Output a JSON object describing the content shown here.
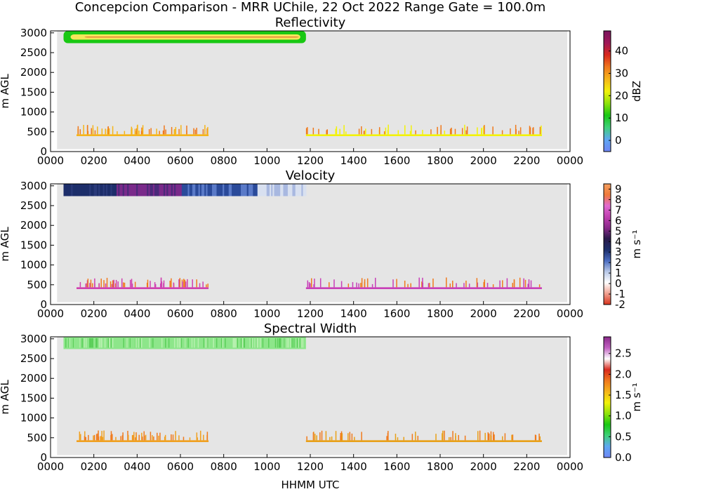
{
  "figure": {
    "title": "Concepcion Comparison - MRR UChile, 22 Oct 2022 Range Gate = 100.0m",
    "xlabel": "HHMM UTC"
  },
  "chart_data": [
    {
      "type": "heatmap",
      "title": "Reflectivity",
      "ylabel": "m AGL",
      "x_ticks": [
        "0000",
        "0200",
        "0400",
        "0600",
        "0800",
        "1000",
        "1200",
        "1400",
        "1600",
        "1800",
        "2000",
        "2200",
        "0000"
      ],
      "y_ticks": [
        "0",
        "500",
        "1000",
        "1500",
        "2000",
        "2500",
        "3000"
      ],
      "xlim_hours": [
        0,
        24
      ],
      "ylim_m": [
        0,
        3050
      ],
      "colorbar": {
        "label": "dBZ",
        "ticks": [
          "0",
          "10",
          "20",
          "30",
          "40"
        ],
        "range": [
          -5,
          49
        ],
        "colors": [
          "#6f86f5",
          "#5fa7f2",
          "#3fd07a",
          "#19c813",
          "#8fe30a",
          "#f2f20a",
          "#f5b51a",
          "#f0781d",
          "#d8281c",
          "#a01858",
          "#7a145e"
        ]
      },
      "layers": [
        {
          "desc": "cloud band",
          "t0": 0.6,
          "t1": 11.8,
          "y0": 2740,
          "y1": 3050,
          "core_color": "#e8823a",
          "edge_color": "#19c813"
        },
        {
          "desc": "low band a",
          "t0": 1.2,
          "t1": 7.3,
          "y0": 390,
          "y1": 490,
          "color": "#f5b51a"
        },
        {
          "desc": "low band b",
          "t0": 11.8,
          "t1": 22.7,
          "y0": 390,
          "y1": 490,
          "color": "#f2f20a"
        }
      ]
    },
    {
      "type": "heatmap",
      "title": "Velocity",
      "ylabel": "m AGL",
      "x_ticks": [
        "0000",
        "0200",
        "0400",
        "0600",
        "0800",
        "1000",
        "1200",
        "1400",
        "1600",
        "1800",
        "2000",
        "2200",
        "0000"
      ],
      "y_ticks": [
        "0",
        "500",
        "1000",
        "1500",
        "2000",
        "2500",
        "3000"
      ],
      "xlim_hours": [
        0,
        24
      ],
      "ylim_m": [
        0,
        3050
      ],
      "colorbar": {
        "label": "m s⁻¹",
        "ticks": [
          "-2",
          "-1",
          "0",
          "1",
          "2",
          "3",
          "4",
          "5",
          "6",
          "7",
          "8",
          "9"
        ],
        "range": [
          -2,
          9.5
        ],
        "colors": [
          "#d8321c",
          "#f0a090",
          "#ffffff",
          "#b8c8e8",
          "#4a6cc0",
          "#1d2e6a",
          "#2a1a4a",
          "#8a2a8a",
          "#c040b0",
          "#e06ad0",
          "#f07a3a",
          "#f5a060"
        ]
      },
      "layers": [
        {
          "desc": "cloud band",
          "t0": 0.6,
          "t1": 11.8,
          "y0": 2740,
          "y1": 3050,
          "color_a": "#1d2e6a",
          "color_b": "#7a2a8a",
          "color_c": "#d8e0f0"
        },
        {
          "desc": "low band a",
          "t0": 1.2,
          "t1": 7.3,
          "y0": 390,
          "y1": 490,
          "color": "#d040b0"
        },
        {
          "desc": "low band b",
          "t0": 11.8,
          "t1": 22.7,
          "y0": 390,
          "y1": 490,
          "color": "#c840b8"
        }
      ]
    },
    {
      "type": "heatmap",
      "title": "Spectral Width",
      "ylabel": "m AGL",
      "x_ticks": [
        "0000",
        "0200",
        "0400",
        "0600",
        "0800",
        "1000",
        "1200",
        "1400",
        "1600",
        "1800",
        "2000",
        "2200",
        "0000"
      ],
      "y_ticks": [
        "0",
        "500",
        "1000",
        "1500",
        "2000",
        "2500",
        "3000"
      ],
      "xlim_hours": [
        0,
        24
      ],
      "ylim_m": [
        0,
        3050
      ],
      "colorbar": {
        "label": "m s⁻¹",
        "ticks": [
          "0.0",
          "0.5",
          "1.0",
          "1.5",
          "2.0",
          "2.5"
        ],
        "range": [
          0,
          2.9
        ],
        "colors": [
          "#6f86f5",
          "#5fa7f2",
          "#3fd07a",
          "#19c813",
          "#8fe30a",
          "#f2f20a",
          "#f5b51a",
          "#f0781d",
          "#d8281c",
          "#ffffff",
          "#c060c0",
          "#8a2a8a"
        ]
      },
      "layers": [
        {
          "desc": "cloud band",
          "t0": 0.6,
          "t1": 11.8,
          "y0": 2740,
          "y1": 3050,
          "color": "#8de68a"
        },
        {
          "desc": "low band a",
          "t0": 1.2,
          "t1": 7.3,
          "y0": 390,
          "y1": 490,
          "color": "#f0a020"
        },
        {
          "desc": "low band b",
          "t0": 11.8,
          "t1": 22.7,
          "y0": 390,
          "y1": 490,
          "color": "#e8a018"
        }
      ]
    }
  ]
}
